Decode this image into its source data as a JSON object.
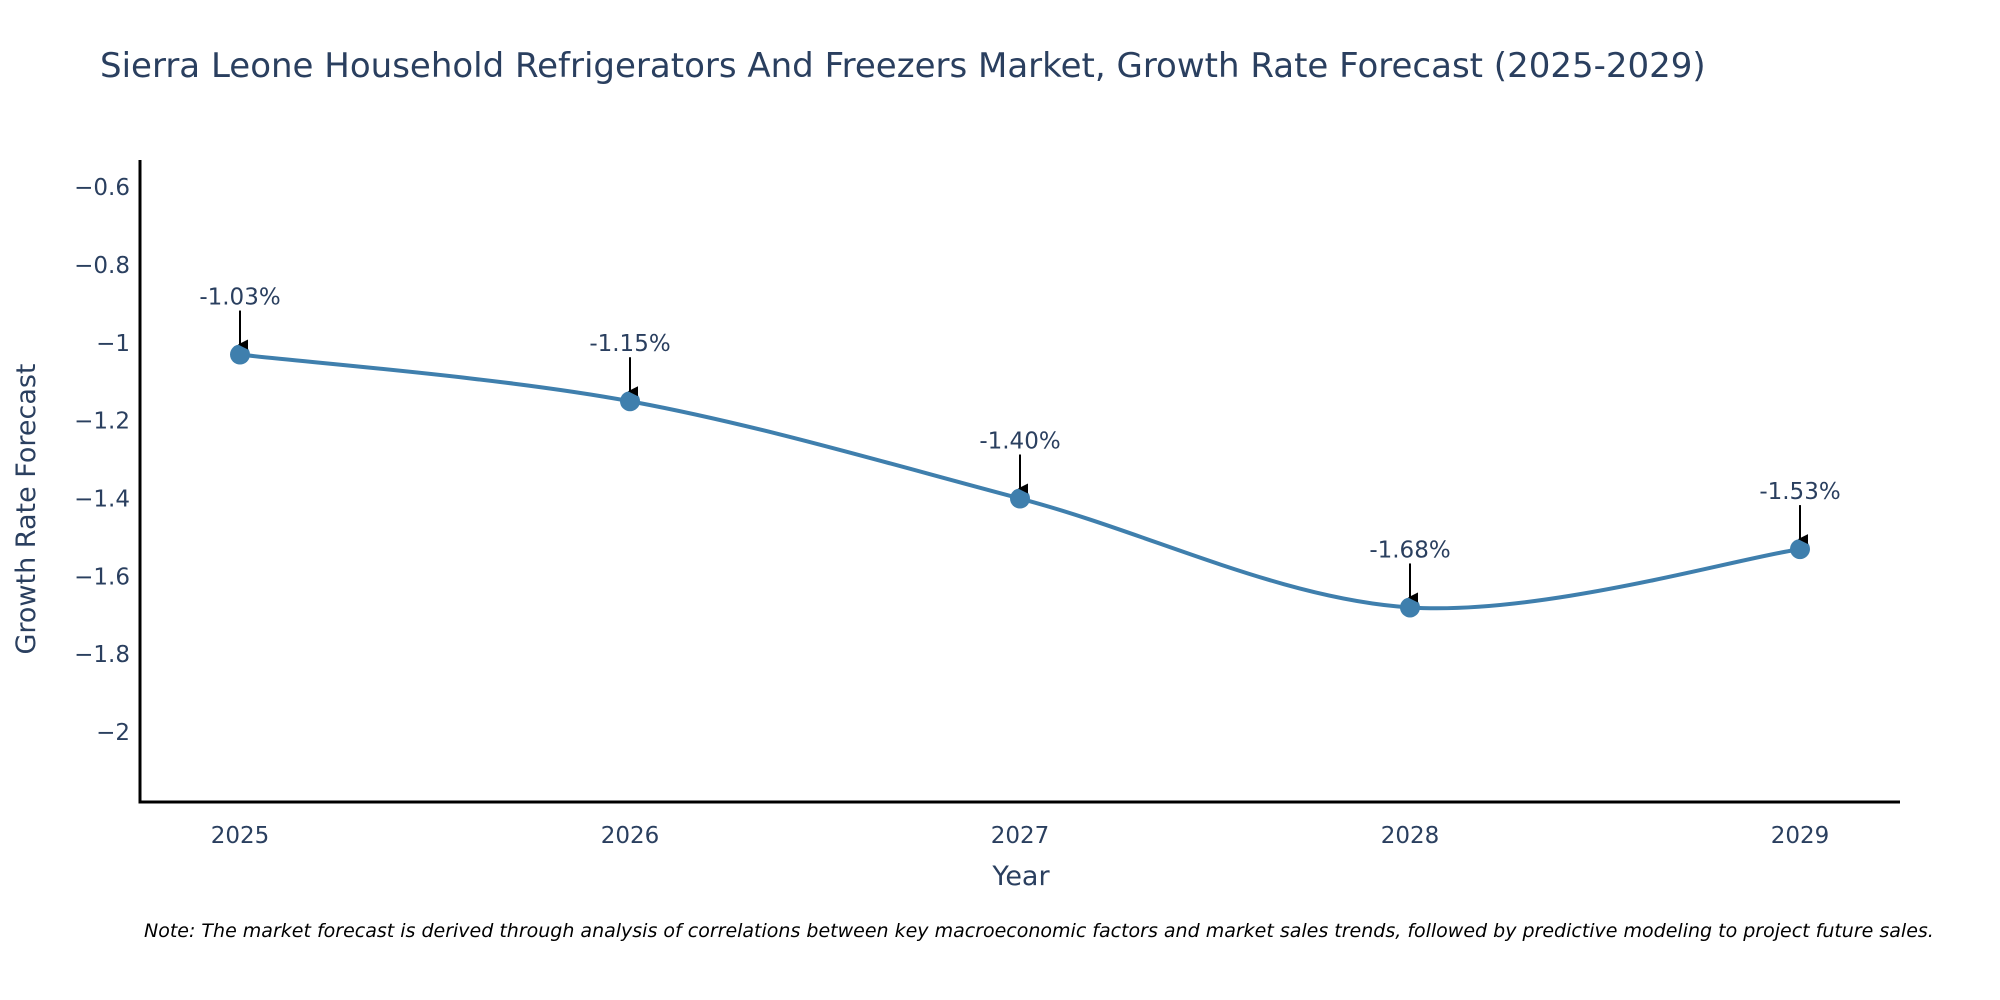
{
  "chart_data": {
    "type": "line",
    "title": "Sierra Leone Household Refrigerators And Freezers Market, Growth Rate Forecast (2025-2029)",
    "xlabel": "Year",
    "ylabel": "Growth Rate Forecast",
    "categories": [
      "2025",
      "2026",
      "2027",
      "2028",
      "2029"
    ],
    "values": [
      -1.03,
      -1.15,
      -1.4,
      -1.68,
      -1.53
    ],
    "data_labels": [
      "-1.03%",
      "-1.15%",
      "-1.40%",
      "-1.68%",
      "-1.53%"
    ],
    "yticks": [
      -0.6,
      -0.8,
      -1,
      -1.2,
      -1.4,
      -1.6,
      -1.8,
      -2
    ],
    "ytick_labels": [
      "−0.6",
      "−0.8",
      "−1",
      "−1.2",
      "−1.4",
      "−1.6",
      "−1.8",
      "−2"
    ],
    "ylim": [
      -2.18,
      -0.53
    ],
    "grid": false,
    "line_color": "#3f7fad",
    "marker_color": "#3f7fad",
    "axis_color": "#000000",
    "text_color": "#2a3f5f",
    "annotation_color": "#000000"
  },
  "note": "Note: The market forecast is derived through analysis of correlations between key macroeconomic factors and market sales trends, followed by predictive modeling to project future sales."
}
